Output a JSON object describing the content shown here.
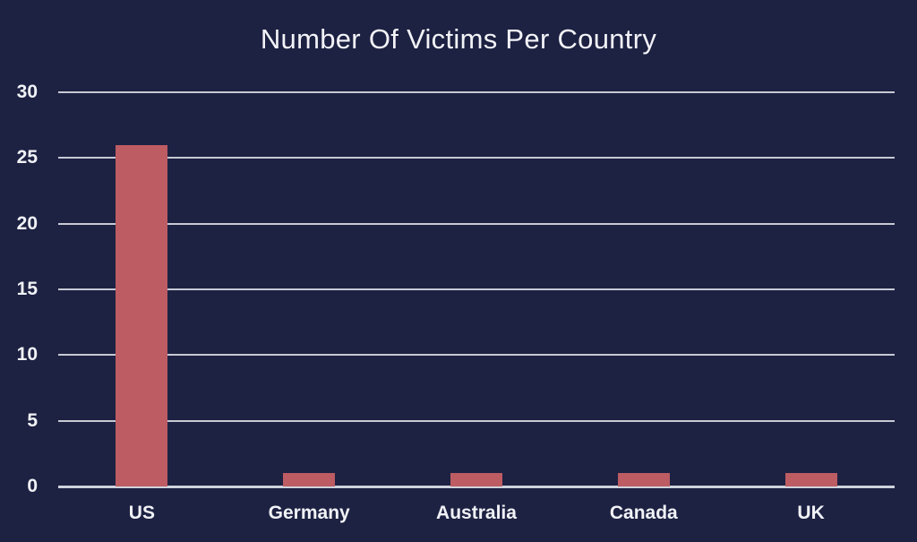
{
  "chart_data": {
    "type": "bar",
    "title": "Number Of Victims Per Country",
    "categories": [
      "US",
      "Germany",
      "Australia",
      "Canada",
      "UK"
    ],
    "values": [
      26,
      1,
      1,
      1,
      1
    ],
    "xlabel": "",
    "ylabel": "",
    "ylim": [
      0,
      30
    ],
    "yticks": [
      0,
      5,
      10,
      15,
      20,
      25,
      30
    ],
    "grid": true,
    "legend": false,
    "colors": {
      "background": "#1d2142",
      "bar": "#bd5c63",
      "gridline": "#c7cad4",
      "axis_line": "#ced2db",
      "text": "#f0f2f6"
    }
  }
}
